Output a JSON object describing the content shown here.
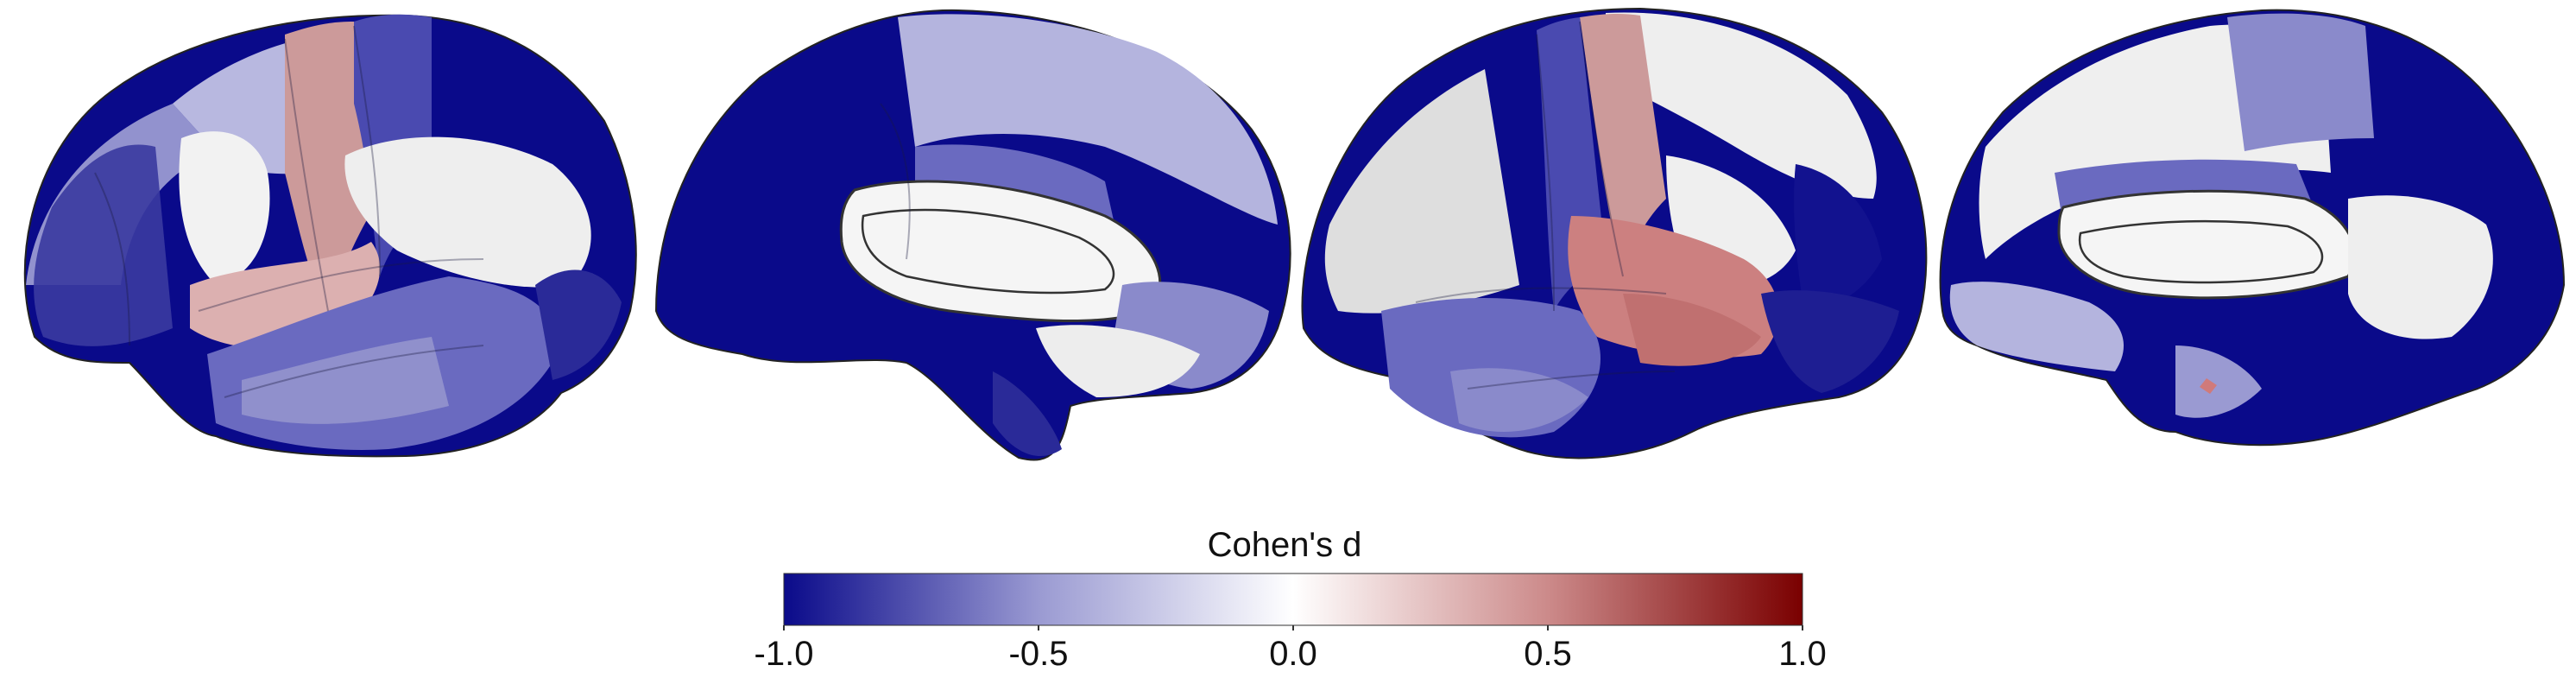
{
  "colorbar": {
    "title": "Cohen's d",
    "min": -1.0,
    "max": 1.0,
    "ticks": [
      "-1.0",
      "-0.5",
      "0.0",
      "0.5",
      "1.0"
    ],
    "tick_values": [
      -1.0,
      -0.5,
      0.0,
      0.5,
      1.0
    ],
    "colors": {
      "negative_end": "#0a0a8a",
      "mid_negative": "#9a9ad2",
      "zero": "#ffffff",
      "mid_positive": "#cc8a8a",
      "positive_end": "#7a0000"
    }
  },
  "views": [
    {
      "name": "left-lateral"
    },
    {
      "name": "left-medial"
    },
    {
      "name": "right-lateral"
    },
    {
      "name": "right-medial"
    }
  ]
}
